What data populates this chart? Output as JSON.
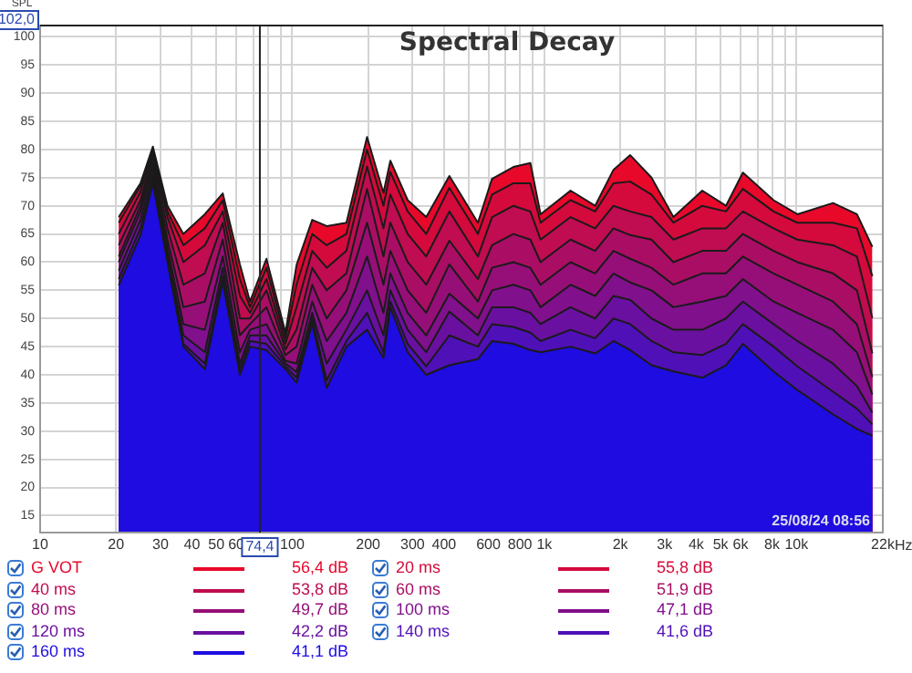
{
  "chart_data": {
    "type": "area",
    "title": "Spectral Decay",
    "ylabel": "SPL",
    "log": "x",
    "grid": true,
    "legend": "bottom",
    "xlim": [
      10,
      22000
    ],
    "ylim": [
      12,
      102
    ],
    "xticks": [
      10,
      20,
      30,
      40,
      50,
      60,
      {
        "value": 70,
        "label": null
      },
      {
        "value": 80,
        "label": null
      },
      {
        "value": 90,
        "label": null
      },
      100,
      200,
      300,
      400,
      {
        "value": 500,
        "label": null
      },
      600,
      {
        "value": 700,
        "label": null
      },
      800,
      {
        "value": 900,
        "label": null
      },
      {
        "value": 1000,
        "label": "1k"
      },
      {
        "value": 2000,
        "label": "2k"
      },
      {
        "value": 3000,
        "label": "3k"
      },
      {
        "value": 4000,
        "label": "4k"
      },
      {
        "value": 5000,
        "label": "5k"
      },
      {
        "value": 6000,
        "label": "6k"
      },
      {
        "value": 7000,
        "label": null
      },
      {
        "value": 8000,
        "label": "8k"
      },
      {
        "value": 9000,
        "label": null
      },
      {
        "value": 10000,
        "label": "10k"
      },
      {
        "value": 22000,
        "label": "22k"
      }
    ],
    "xlabel": "Hz",
    "yticks": [
      15,
      20,
      25,
      30,
      35,
      40,
      45,
      50,
      55,
      60,
      65,
      70,
      75,
      80,
      85,
      90,
      95,
      100
    ],
    "x": [
      20.5,
      25,
      28,
      32,
      37,
      45,
      53,
      62,
      68,
      79,
      94,
      104,
      120,
      137,
      164,
      198,
      230,
      245,
      287,
      340,
      420,
      545,
      620,
      754,
      880,
      966,
      1270,
      1590,
      1880,
      2190,
      2660,
      3250,
      4230,
      5250,
      6130,
      8110,
      10080,
      13960,
      17370,
      20000
    ],
    "series": [
      {
        "name": "G VOT",
        "color": "#e8082a",
        "values": [
          68,
          74,
          80.5,
          70,
          65,
          68.5,
          72.2,
          59.6,
          53,
          60.6,
          47.5,
          59.5,
          67.5,
          66.4,
          67,
          82.2,
          72.3,
          78,
          71,
          68,
          75.3,
          67,
          74.8,
          76.9,
          77.6,
          68.5,
          72.7,
          70,
          76.4,
          79,
          75,
          68,
          72.7,
          70,
          75.9,
          71,
          68.5,
          70.5,
          68.5,
          62.7
        ]
      },
      {
        "name": "20 ms",
        "color": "#d40a3c",
        "values": [
          67,
          73.5,
          80,
          69,
          63,
          66,
          71,
          57,
          52,
          59,
          46.5,
          56,
          65,
          63,
          65,
          80,
          70,
          76,
          69,
          65,
          73.2,
          65,
          72,
          74,
          74,
          67,
          71,
          69,
          74,
          74.3,
          72,
          67,
          70,
          69,
          73,
          69,
          67,
          67,
          66,
          57.5
        ]
      },
      {
        "name": "40 ms",
        "color": "#c00c50",
        "values": [
          65,
          72.5,
          79.5,
          68,
          60,
          63,
          69,
          54,
          51,
          57,
          45.5,
          52,
          62,
          59,
          62,
          77,
          66,
          72,
          65,
          61,
          69,
          61,
          68,
          70,
          69,
          64,
          68,
          66,
          70,
          69,
          68,
          64,
          66,
          66,
          69,
          66,
          64,
          63,
          61,
          50.1
        ]
      },
      {
        "name": "60 ms",
        "color": "#aa0e64",
        "values": [
          63,
          71,
          79,
          66,
          56,
          58,
          67,
          50,
          50,
          55,
          44.5,
          48,
          59,
          55,
          58,
          73,
          61,
          67,
          60,
          56,
          63.8,
          57,
          63,
          65,
          64,
          60,
          64,
          62,
          66,
          64.8,
          64,
          60,
          62,
          62,
          65,
          62,
          60,
          58,
          55,
          43.8
        ]
      },
      {
        "name": "80 ms",
        "color": "#960f78",
        "values": [
          61,
          70,
          78,
          64,
          52,
          53,
          64,
          47,
          49,
          52,
          43.5,
          45,
          56,
          50,
          55,
          67,
          56,
          62,
          55,
          51,
          59.6,
          53,
          59,
          60,
          59,
          56,
          60,
          58,
          62,
          60.6,
          59,
          56,
          58,
          58,
          61,
          58,
          56,
          53,
          49,
          39.6
        ]
      },
      {
        "name": "100 ms",
        "color": "#80108c",
        "values": [
          60,
          69,
          77,
          62.5,
          49,
          48,
          61,
          44,
          48,
          49,
          42.5,
          42,
          53,
          46,
          51,
          61,
          51,
          58,
          51,
          47,
          54.4,
          50,
          55,
          56,
          55,
          52,
          56,
          54,
          58,
          56.4,
          55,
          52,
          53,
          54,
          57,
          53,
          51,
          48,
          44,
          36.5
        ]
      },
      {
        "name": "120 ms",
        "color": "#6a10a0",
        "values": [
          58.5,
          67.5,
          76,
          61.5,
          47,
          44,
          59,
          42,
          47,
          47,
          42,
          40.5,
          51,
          42,
          48,
          55,
          47,
          55,
          48,
          44,
          51.2,
          47,
          52,
          52,
          51,
          49,
          52,
          50,
          54,
          53.3,
          50,
          48,
          48,
          50,
          53,
          49,
          46,
          42,
          38,
          33.3
        ]
      },
      {
        "name": "140 ms",
        "color": "#5010b8",
        "values": [
          57,
          66,
          75,
          60.5,
          45.5,
          42,
          57.5,
          41,
          46,
          45.5,
          41.5,
          39.5,
          50,
          39,
          46,
          51,
          44,
          53,
          45.5,
          41.5,
          47,
          45,
          49,
          48.5,
          47.5,
          46,
          48,
          46.5,
          50,
          49,
          46,
          44,
          43.5,
          45.5,
          49,
          45,
          41.5,
          37,
          34,
          31.2
        ]
      },
      {
        "name": "160 ms",
        "color": "#1e0ce0",
        "values": [
          55.9,
          64.8,
          74,
          60,
          45,
          41,
          56.5,
          40,
          45,
          44.4,
          41,
          38.6,
          49.1,
          37.7,
          45,
          48,
          43,
          52,
          44,
          40,
          41.7,
          42.8,
          46,
          45.5,
          44.4,
          44,
          45,
          43.8,
          46,
          44.4,
          41.7,
          40.6,
          39.5,
          41.7,
          45.5,
          40.6,
          37.3,
          33,
          30.4,
          29.2
        ]
      }
    ],
    "ref_lines": [
      {
        "axis": "x",
        "value": 74.4,
        "label": "74,4"
      },
      {
        "axis": "y",
        "value": 102,
        "label": "102,0"
      }
    ],
    "annotations": [
      "56,4 dB",
      "55,8 dB",
      "53,8 dB",
      "51,9 dB",
      "49,7 dB",
      "47,1 dB",
      "42,2 dB",
      "41,6 dB",
      "41,1 dB",
      "25/08/24 08:56"
    ]
  }
}
